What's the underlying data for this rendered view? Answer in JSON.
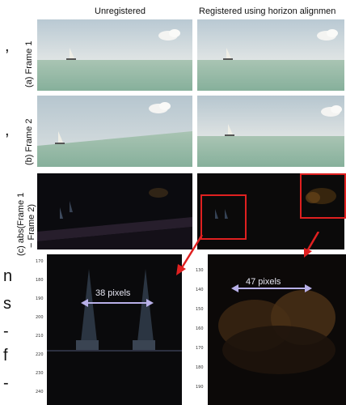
{
  "columns": {
    "left": "Unregistered",
    "right": "Registered using horizon alignmen"
  },
  "rows": {
    "a": "(a) Frame 1",
    "b": "(b) Frame 2",
    "c_line1": "(c) abs(Frame 1",
    "c_line2": "− Frame 2)"
  },
  "zoom_left": {
    "measurement": "38 pixels",
    "yticks": [
      "170",
      "180",
      "190",
      "200",
      "210",
      "220",
      "230",
      "240"
    ]
  },
  "zoom_right": {
    "measurement": "47 pixels",
    "yticks": [
      "130",
      "140",
      "150",
      "160",
      "170",
      "180",
      "190"
    ]
  },
  "colors": {
    "highlight_box": "#e02020",
    "arrow": "#e02020",
    "measure_arrow": "#b8b0e8"
  }
}
